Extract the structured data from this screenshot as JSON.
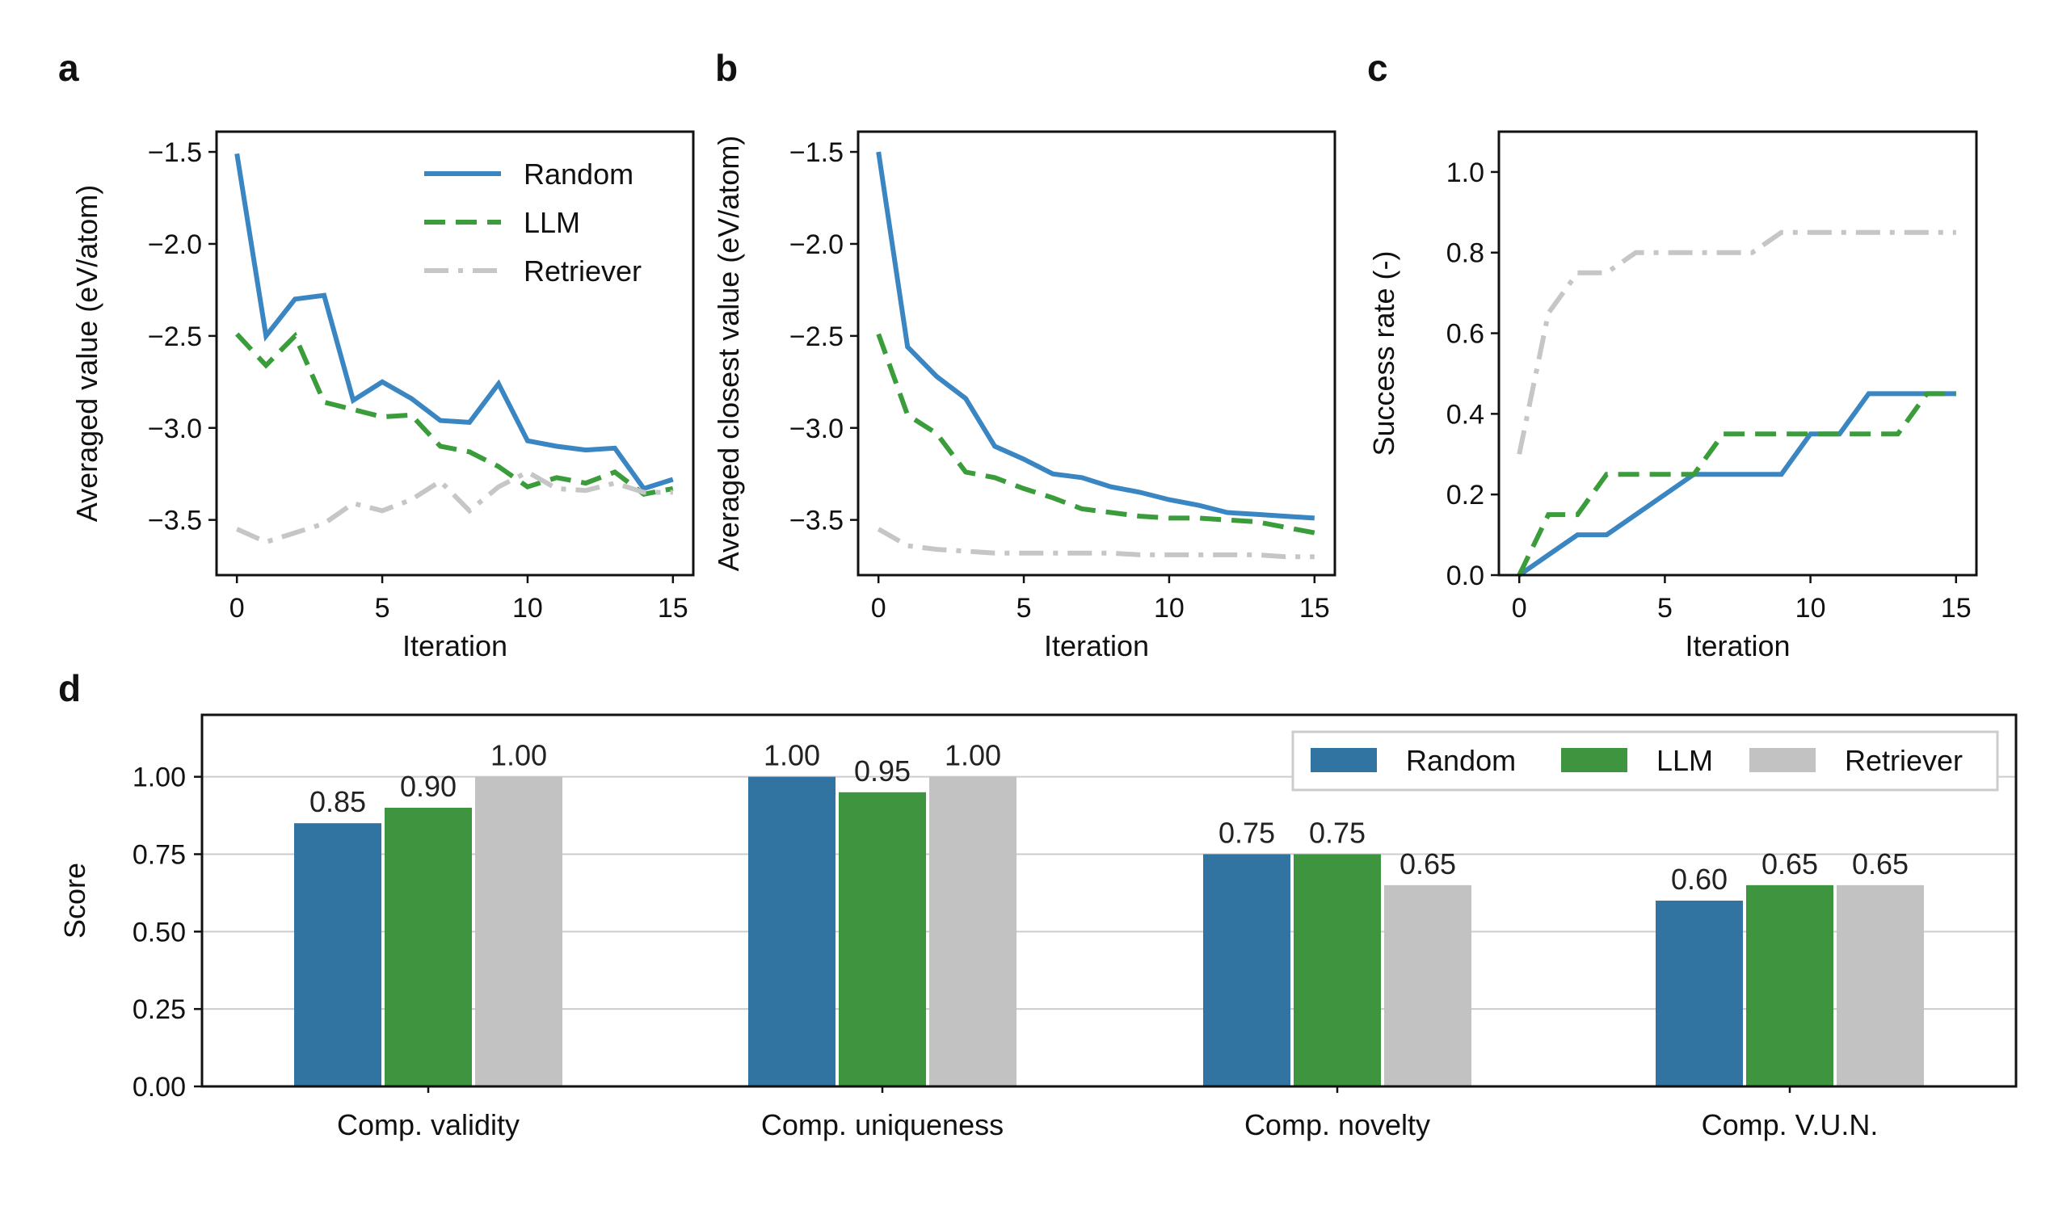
{
  "colors": {
    "Random": "#3a86c2",
    "LLM": "#3a9c3a",
    "Retriever": "#c6c6c6",
    "bar_Random": "#3274a1",
    "bar_LLM": "#3f943f",
    "bar_Retriever": "#c2c2c2"
  },
  "chart_data": [
    {
      "panel": "a",
      "type": "line",
      "xlabel": "Iteration",
      "ylabel": "Averaged value (eV/atom)",
      "xlim": [
        -0.7,
        15.7
      ],
      "ylim": [
        -3.8,
        -1.39
      ],
      "xticks": [
        0,
        5,
        10,
        15
      ],
      "xtick_labels": [
        "0",
        "5",
        "10",
        "15"
      ],
      "yticks": [
        -3.5,
        -3.0,
        -2.5,
        -2.0,
        -1.5
      ],
      "ytick_labels": [
        "−3.5",
        "−3.0",
        "−2.5",
        "−2.0",
        "−1.5"
      ],
      "legend": "top-right",
      "legend_entries": [
        "Random",
        "LLM",
        "Retriever"
      ],
      "x": [
        0,
        1,
        2,
        3,
        4,
        5,
        6,
        7,
        8,
        9,
        10,
        11,
        12,
        13,
        14,
        15
      ],
      "series": [
        {
          "name": "Random",
          "style": "solid",
          "values": [
            -1.51,
            -2.5,
            -2.3,
            -2.28,
            -2.85,
            -2.75,
            -2.84,
            -2.96,
            -2.97,
            -2.76,
            -3.07,
            -3.1,
            -3.12,
            -3.11,
            -3.33,
            -3.28
          ]
        },
        {
          "name": "LLM",
          "style": "dashed",
          "values": [
            -2.49,
            -2.66,
            -2.5,
            -2.86,
            -2.9,
            -2.94,
            -2.93,
            -3.1,
            -3.13,
            -3.21,
            -3.32,
            -3.27,
            -3.3,
            -3.24,
            -3.36,
            -3.33
          ]
        },
        {
          "name": "Retriever",
          "style": "dashdot",
          "values": [
            -3.55,
            -3.62,
            -3.57,
            -3.52,
            -3.41,
            -3.45,
            -3.39,
            -3.29,
            -3.45,
            -3.32,
            -3.24,
            -3.33,
            -3.34,
            -3.3,
            -3.35,
            -3.35
          ]
        }
      ]
    },
    {
      "panel": "b",
      "type": "line",
      "xlabel": "Iteration",
      "ylabel": "Averaged closest value (eV/atom)",
      "xlim": [
        -0.7,
        15.7
      ],
      "ylim": [
        -3.8,
        -1.39
      ],
      "xticks": [
        0,
        5,
        10,
        15
      ],
      "xtick_labels": [
        "0",
        "5",
        "10",
        "15"
      ],
      "yticks": [
        -3.5,
        -3.0,
        -2.5,
        -2.0,
        -1.5
      ],
      "ytick_labels": [
        "−3.5",
        "−3.0",
        "−2.5",
        "−2.0",
        "−1.5"
      ],
      "x": [
        0,
        1,
        2,
        3,
        4,
        5,
        6,
        7,
        8,
        9,
        10,
        11,
        12,
        13,
        14,
        15
      ],
      "series": [
        {
          "name": "Random",
          "style": "solid",
          "values": [
            -1.5,
            -2.56,
            -2.72,
            -2.84,
            -3.1,
            -3.17,
            -3.25,
            -3.27,
            -3.32,
            -3.35,
            -3.39,
            -3.42,
            -3.46,
            -3.47,
            -3.48,
            -3.49
          ]
        },
        {
          "name": "LLM",
          "style": "dashed",
          "values": [
            -2.49,
            -2.93,
            -3.03,
            -3.24,
            -3.27,
            -3.33,
            -3.38,
            -3.44,
            -3.46,
            -3.48,
            -3.49,
            -3.49,
            -3.5,
            -3.51,
            -3.54,
            -3.57
          ]
        },
        {
          "name": "Retriever",
          "style": "dashdot",
          "values": [
            -3.55,
            -3.64,
            -3.66,
            -3.67,
            -3.68,
            -3.68,
            -3.68,
            -3.68,
            -3.68,
            -3.69,
            -3.69,
            -3.69,
            -3.69,
            -3.69,
            -3.7,
            -3.7
          ]
        }
      ]
    },
    {
      "panel": "c",
      "type": "line",
      "xlabel": "Iteration",
      "ylabel": "Success rate (-)",
      "xlim": [
        -0.7,
        15.7
      ],
      "ylim": [
        0,
        1.1
      ],
      "xticks": [
        0,
        5,
        10,
        15
      ],
      "xtick_labels": [
        "0",
        "5",
        "10",
        "15"
      ],
      "yticks": [
        0,
        0.2,
        0.4,
        0.6,
        0.8,
        1.0
      ],
      "ytick_labels": [
        "0.0",
        "0.2",
        "0.4",
        "0.6",
        "0.8",
        "1.0"
      ],
      "x": [
        0,
        1,
        2,
        3,
        4,
        5,
        6,
        7,
        8,
        9,
        10,
        11,
        12,
        13,
        14,
        15
      ],
      "series": [
        {
          "name": "Random",
          "style": "solid",
          "values": [
            0,
            0.05,
            0.1,
            0.1,
            0.15,
            0.2,
            0.25,
            0.25,
            0.25,
            0.25,
            0.35,
            0.35,
            0.45,
            0.45,
            0.45,
            0.45
          ]
        },
        {
          "name": "LLM",
          "style": "dashed",
          "values": [
            0,
            0.15,
            0.15,
            0.25,
            0.25,
            0.25,
            0.25,
            0.35,
            0.35,
            0.35,
            0.35,
            0.35,
            0.35,
            0.35,
            0.45,
            0.45
          ]
        },
        {
          "name": "Retriever",
          "style": "dashdot",
          "values": [
            0.3,
            0.65,
            0.75,
            0.75,
            0.8,
            0.8,
            0.8,
            0.8,
            0.8,
            0.85,
            0.85,
            0.85,
            0.85,
            0.85,
            0.85,
            0.85
          ]
        }
      ]
    },
    {
      "panel": "d",
      "type": "bar",
      "ylabel": "Score",
      "ylim": [
        0,
        1.2
      ],
      "yticks": [
        0,
        0.25,
        0.5,
        0.75,
        1.0
      ],
      "ytick_labels": [
        "0.00",
        "0.25",
        "0.50",
        "0.75",
        "1.00"
      ],
      "grid": true,
      "legend": "top-right",
      "legend_entries": [
        "Random",
        "LLM",
        "Retriever"
      ],
      "categories": [
        "Comp. validity",
        "Comp. uniqueness",
        "Comp. novelty",
        "Comp. V.U.N."
      ],
      "series": [
        {
          "name": "Random",
          "values": [
            0.85,
            1.0,
            0.75,
            0.6
          ],
          "labels": [
            "0.85",
            "1.00",
            "0.75",
            "0.60"
          ]
        },
        {
          "name": "LLM",
          "values": [
            0.9,
            0.95,
            0.75,
            0.65
          ],
          "labels": [
            "0.90",
            "0.95",
            "0.75",
            "0.65"
          ]
        },
        {
          "name": "Retriever",
          "values": [
            1.0,
            1.0,
            0.65,
            0.65
          ],
          "labels": [
            "1.00",
            "1.00",
            "0.65",
            "0.65"
          ]
        }
      ]
    }
  ]
}
